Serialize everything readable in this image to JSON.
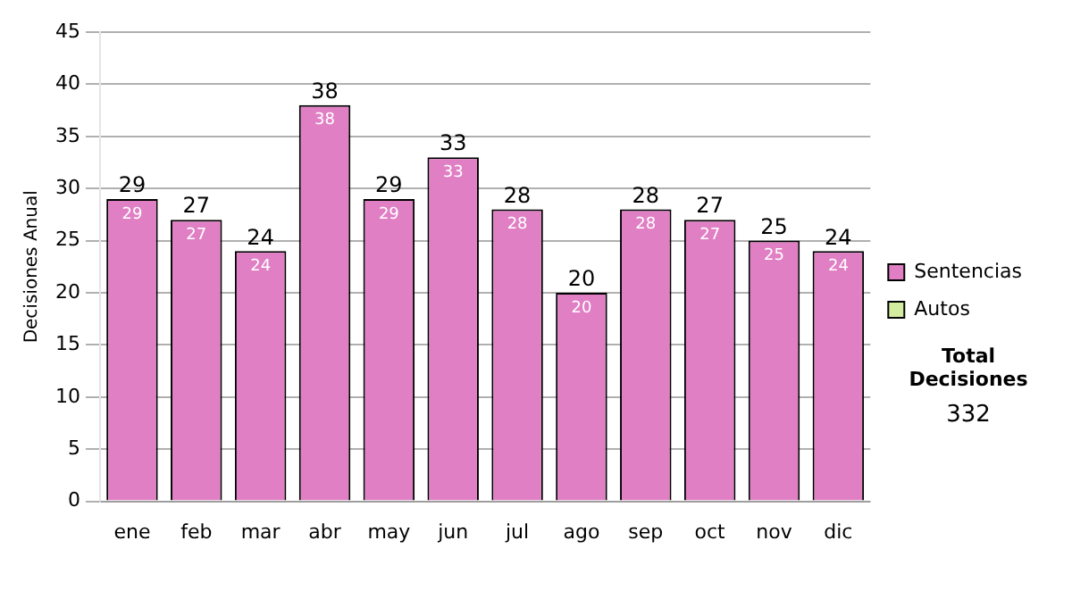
{
  "chart_data": {
    "type": "bar",
    "stacked": true,
    "ylabel": "Decisiones Anual",
    "categories": [
      "ene",
      "feb",
      "mar",
      "abr",
      "may",
      "jun",
      "jul",
      "ago",
      "sep",
      "oct",
      "nov",
      "dic"
    ],
    "series": [
      {
        "name": "Sentencias",
        "color": "#e07fc4",
        "values": [
          29,
          27,
          24,
          38,
          29,
          33,
          28,
          20,
          28,
          27,
          25,
          24
        ],
        "value_labels": [
          "29",
          "27",
          "24",
          "38",
          "29",
          "33",
          "28",
          "20",
          "28",
          "27",
          "25",
          "24"
        ]
      },
      {
        "name": "Autos",
        "color": "#d4eca0",
        "values": [
          0,
          0,
          0,
          0,
          0,
          0,
          0,
          0,
          0,
          0,
          0,
          0
        ]
      }
    ],
    "totals": [
      "29",
      "27",
      "24",
      "38",
      "29",
      "33",
      "28",
      "20",
      "28",
      "27",
      "25",
      "24"
    ],
    "ylim": [
      0,
      45
    ],
    "yticks": [
      0,
      5,
      10,
      15,
      20,
      25,
      30,
      35,
      40,
      45
    ],
    "grid": "y",
    "legend": "right",
    "annotations": [
      "Total Decisiones",
      "332"
    ]
  }
}
